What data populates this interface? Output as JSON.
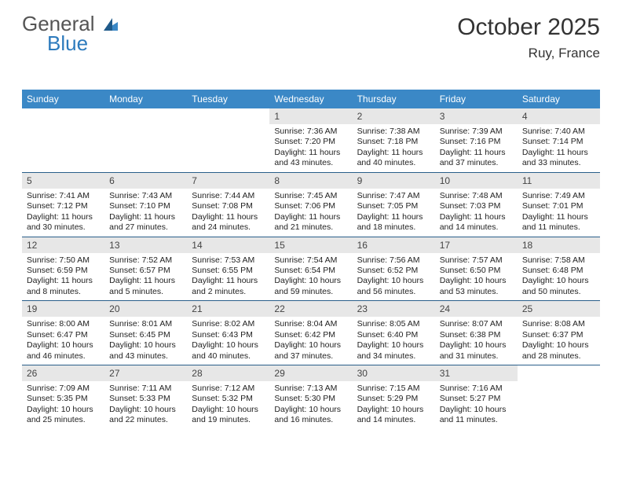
{
  "logo": {
    "text1": "General",
    "text2": "Blue"
  },
  "title": "October 2025",
  "location": "Ruy, France",
  "colors": {
    "header_bg": "#3b88c6",
    "daynum_bg": "#e7e7e7",
    "week_border": "#2a5f8a",
    "text": "#222222",
    "logo_gray": "#555555",
    "logo_blue": "#2d7bbd"
  },
  "typography": {
    "title_fontsize": 30,
    "location_fontsize": 17,
    "dow_fontsize": 12,
    "daynum_fontsize": 12,
    "info_fontsize": 10.5
  },
  "dow": [
    "Sunday",
    "Monday",
    "Tuesday",
    "Wednesday",
    "Thursday",
    "Friday",
    "Saturday"
  ],
  "weeks": [
    [
      {
        "n": "",
        "sun": "",
        "set": "",
        "day": ""
      },
      {
        "n": "",
        "sun": "",
        "set": "",
        "day": ""
      },
      {
        "n": "",
        "sun": "",
        "set": "",
        "day": ""
      },
      {
        "n": "1",
        "sun": "Sunrise: 7:36 AM",
        "set": "Sunset: 7:20 PM",
        "day": "Daylight: 11 hours and 43 minutes."
      },
      {
        "n": "2",
        "sun": "Sunrise: 7:38 AM",
        "set": "Sunset: 7:18 PM",
        "day": "Daylight: 11 hours and 40 minutes."
      },
      {
        "n": "3",
        "sun": "Sunrise: 7:39 AM",
        "set": "Sunset: 7:16 PM",
        "day": "Daylight: 11 hours and 37 minutes."
      },
      {
        "n": "4",
        "sun": "Sunrise: 7:40 AM",
        "set": "Sunset: 7:14 PM",
        "day": "Daylight: 11 hours and 33 minutes."
      }
    ],
    [
      {
        "n": "5",
        "sun": "Sunrise: 7:41 AM",
        "set": "Sunset: 7:12 PM",
        "day": "Daylight: 11 hours and 30 minutes."
      },
      {
        "n": "6",
        "sun": "Sunrise: 7:43 AM",
        "set": "Sunset: 7:10 PM",
        "day": "Daylight: 11 hours and 27 minutes."
      },
      {
        "n": "7",
        "sun": "Sunrise: 7:44 AM",
        "set": "Sunset: 7:08 PM",
        "day": "Daylight: 11 hours and 24 minutes."
      },
      {
        "n": "8",
        "sun": "Sunrise: 7:45 AM",
        "set": "Sunset: 7:06 PM",
        "day": "Daylight: 11 hours and 21 minutes."
      },
      {
        "n": "9",
        "sun": "Sunrise: 7:47 AM",
        "set": "Sunset: 7:05 PM",
        "day": "Daylight: 11 hours and 18 minutes."
      },
      {
        "n": "10",
        "sun": "Sunrise: 7:48 AM",
        "set": "Sunset: 7:03 PM",
        "day": "Daylight: 11 hours and 14 minutes."
      },
      {
        "n": "11",
        "sun": "Sunrise: 7:49 AM",
        "set": "Sunset: 7:01 PM",
        "day": "Daylight: 11 hours and 11 minutes."
      }
    ],
    [
      {
        "n": "12",
        "sun": "Sunrise: 7:50 AM",
        "set": "Sunset: 6:59 PM",
        "day": "Daylight: 11 hours and 8 minutes."
      },
      {
        "n": "13",
        "sun": "Sunrise: 7:52 AM",
        "set": "Sunset: 6:57 PM",
        "day": "Daylight: 11 hours and 5 minutes."
      },
      {
        "n": "14",
        "sun": "Sunrise: 7:53 AM",
        "set": "Sunset: 6:55 PM",
        "day": "Daylight: 11 hours and 2 minutes."
      },
      {
        "n": "15",
        "sun": "Sunrise: 7:54 AM",
        "set": "Sunset: 6:54 PM",
        "day": "Daylight: 10 hours and 59 minutes."
      },
      {
        "n": "16",
        "sun": "Sunrise: 7:56 AM",
        "set": "Sunset: 6:52 PM",
        "day": "Daylight: 10 hours and 56 minutes."
      },
      {
        "n": "17",
        "sun": "Sunrise: 7:57 AM",
        "set": "Sunset: 6:50 PM",
        "day": "Daylight: 10 hours and 53 minutes."
      },
      {
        "n": "18",
        "sun": "Sunrise: 7:58 AM",
        "set": "Sunset: 6:48 PM",
        "day": "Daylight: 10 hours and 50 minutes."
      }
    ],
    [
      {
        "n": "19",
        "sun": "Sunrise: 8:00 AM",
        "set": "Sunset: 6:47 PM",
        "day": "Daylight: 10 hours and 46 minutes."
      },
      {
        "n": "20",
        "sun": "Sunrise: 8:01 AM",
        "set": "Sunset: 6:45 PM",
        "day": "Daylight: 10 hours and 43 minutes."
      },
      {
        "n": "21",
        "sun": "Sunrise: 8:02 AM",
        "set": "Sunset: 6:43 PM",
        "day": "Daylight: 10 hours and 40 minutes."
      },
      {
        "n": "22",
        "sun": "Sunrise: 8:04 AM",
        "set": "Sunset: 6:42 PM",
        "day": "Daylight: 10 hours and 37 minutes."
      },
      {
        "n": "23",
        "sun": "Sunrise: 8:05 AM",
        "set": "Sunset: 6:40 PM",
        "day": "Daylight: 10 hours and 34 minutes."
      },
      {
        "n": "24",
        "sun": "Sunrise: 8:07 AM",
        "set": "Sunset: 6:38 PM",
        "day": "Daylight: 10 hours and 31 minutes."
      },
      {
        "n": "25",
        "sun": "Sunrise: 8:08 AM",
        "set": "Sunset: 6:37 PM",
        "day": "Daylight: 10 hours and 28 minutes."
      }
    ],
    [
      {
        "n": "26",
        "sun": "Sunrise: 7:09 AM",
        "set": "Sunset: 5:35 PM",
        "day": "Daylight: 10 hours and 25 minutes."
      },
      {
        "n": "27",
        "sun": "Sunrise: 7:11 AM",
        "set": "Sunset: 5:33 PM",
        "day": "Daylight: 10 hours and 22 minutes."
      },
      {
        "n": "28",
        "sun": "Sunrise: 7:12 AM",
        "set": "Sunset: 5:32 PM",
        "day": "Daylight: 10 hours and 19 minutes."
      },
      {
        "n": "29",
        "sun": "Sunrise: 7:13 AM",
        "set": "Sunset: 5:30 PM",
        "day": "Daylight: 10 hours and 16 minutes."
      },
      {
        "n": "30",
        "sun": "Sunrise: 7:15 AM",
        "set": "Sunset: 5:29 PM",
        "day": "Daylight: 10 hours and 14 minutes."
      },
      {
        "n": "31",
        "sun": "Sunrise: 7:16 AM",
        "set": "Sunset: 5:27 PM",
        "day": "Daylight: 10 hours and 11 minutes."
      },
      {
        "n": "",
        "sun": "",
        "set": "",
        "day": ""
      }
    ]
  ]
}
